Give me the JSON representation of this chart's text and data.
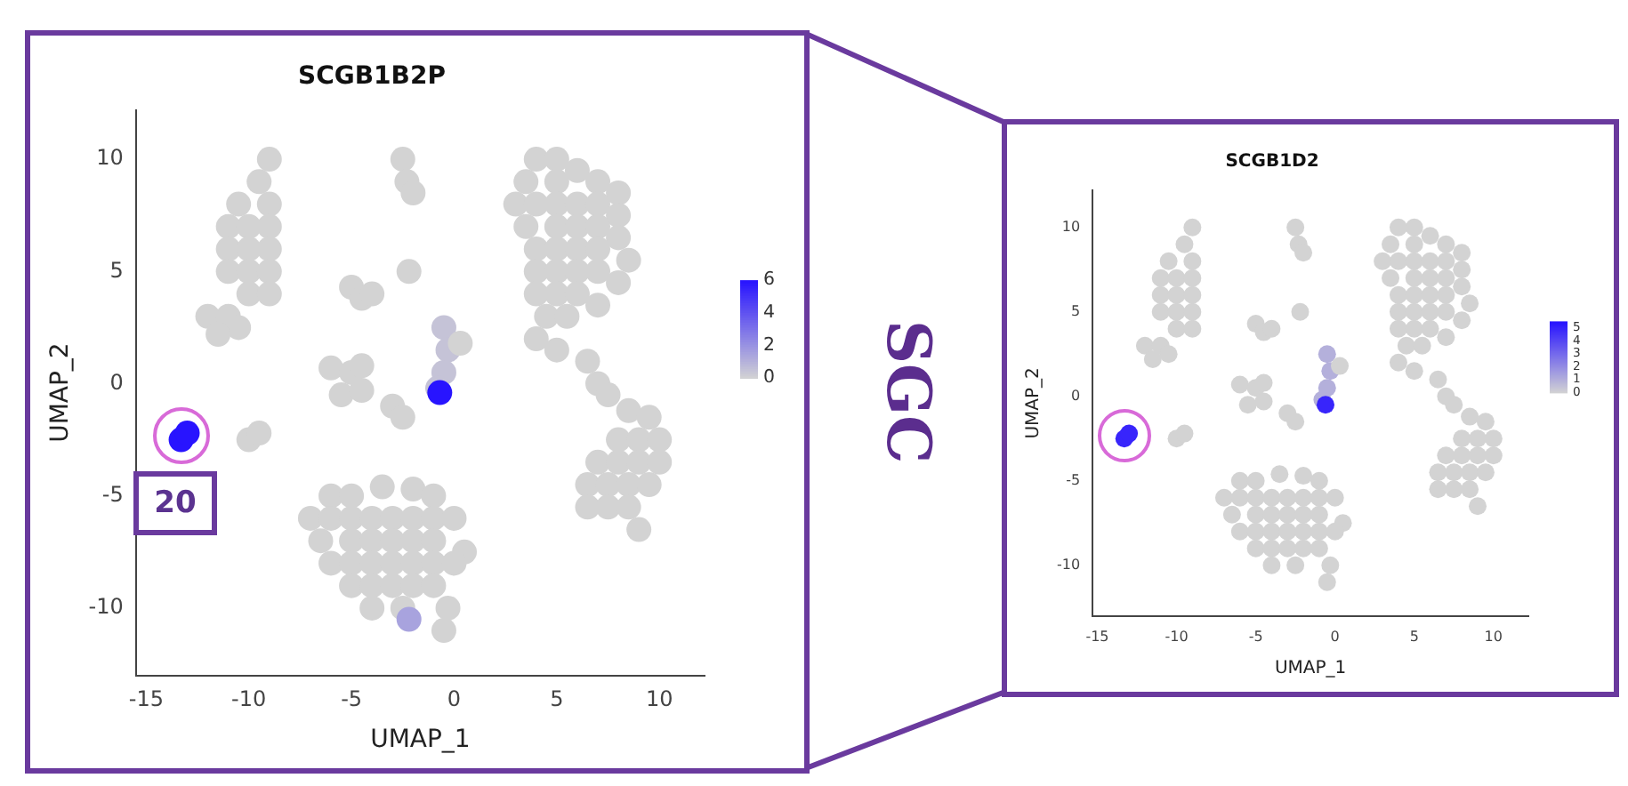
{
  "chart_data": [
    {
      "type": "scatter",
      "title": "SCGB1B2P",
      "xlabel": "UMAP_1",
      "ylabel": "UMAP_2",
      "marker": "circle",
      "grid": false,
      "legend": false,
      "xlim": [
        -15.5,
        12.2
      ],
      "ylim": [
        -13,
        12.2
      ],
      "xticks": [
        -15,
        -10,
        -5,
        0,
        5,
        10
      ],
      "yticks": [
        -10,
        -5,
        0,
        5,
        10
      ],
      "clim": [
        0,
        6
      ],
      "cticks": [
        0,
        2,
        4,
        6
      ],
      "annotations": [
        "20"
      ],
      "x": [
        -9,
        -9.5,
        -10.5,
        -9,
        -11,
        -10,
        -9,
        -11,
        -10,
        -9,
        -11,
        -10,
        -9,
        -10,
        -9,
        -12,
        -11,
        -10.5,
        -11.5,
        -2.5,
        -2.3,
        -2,
        -2.2,
        -5,
        -4.5,
        -4,
        4,
        5,
        6,
        3.5,
        5,
        7,
        8,
        3,
        4,
        5,
        6,
        7,
        8,
        3.5,
        5,
        6,
        7,
        8,
        4,
        5,
        6,
        7,
        8.5,
        4,
        5,
        6,
        7,
        8,
        4,
        5,
        6,
        7,
        4.5,
        5.5,
        4,
        5,
        -6,
        -5,
        -4.5,
        -5.5,
        -4.5,
        -0.5,
        -0.3,
        -0.5,
        -0.8,
        0.3,
        -3,
        -2.5,
        6.5,
        7,
        7.5,
        -10,
        -9.5,
        -6,
        -5,
        -3.5,
        -2,
        -1,
        -7,
        -6,
        -5,
        -4,
        -3,
        -2,
        -1,
        0,
        -6.5,
        -5,
        -4,
        -3,
        -2,
        -1,
        0.5,
        -6,
        -5,
        -4,
        -3,
        -2,
        -1,
        0,
        -5,
        -4,
        -3,
        -2,
        -1,
        -0.3,
        -4,
        -2.5,
        -0.5,
        8.5,
        9.5,
        8,
        9,
        10,
        7,
        8,
        9,
        10,
        6.5,
        7.5,
        8.5,
        9.5,
        6.5,
        7.5,
        8.5,
        9,
        -2.2,
        -0.7,
        -13.3,
        -13
      ],
      "values": [
        10,
        9,
        8,
        8,
        7,
        7,
        7,
        6,
        6,
        6,
        5,
        5,
        5,
        4,
        4,
        3,
        3,
        2.5,
        2.2,
        10,
        9,
        8.5,
        5,
        4.3,
        3.8,
        4,
        10,
        10,
        9.5,
        9,
        9,
        9,
        8.5,
        8,
        8,
        8,
        8,
        8,
        7.5,
        7,
        7,
        7,
        7,
        6.5,
        6,
        6,
        6,
        6,
        5.5,
        5,
        5,
        5,
        5,
        4.5,
        4,
        4,
        4,
        3.5,
        3,
        3,
        2,
        1.5,
        0.7,
        0.5,
        0.8,
        -0.5,
        -0.3,
        2.5,
        1.5,
        0.5,
        -0.2,
        1.8,
        -1,
        -1.5,
        1,
        0,
        -0.5,
        -2.5,
        -2.2,
        -5,
        -5,
        -4.6,
        -4.7,
        -5,
        -6,
        -6,
        -6,
        -6,
        -6,
        -6,
        -6,
        -6,
        -7,
        -7,
        -7,
        -7,
        -7,
        -7,
        -7.5,
        -8,
        -8,
        -8,
        -8,
        -8,
        -8,
        -8,
        -9,
        -9,
        -9,
        -9,
        -9,
        -10,
        -10,
        -10,
        -11,
        -1.2,
        -1.5,
        -2.5,
        -2.5,
        -2.5,
        -3.5,
        -3.5,
        -3.5,
        -3.5,
        -4.5,
        -4.5,
        -4.5,
        -4.5,
        -5.5,
        -5.5,
        -5.5,
        -6.5,
        -10.5,
        -0.4,
        -2.5,
        -2.2
      ],
      "cvalues": [
        0,
        0,
        0,
        0,
        0,
        0,
        0,
        0,
        0,
        0,
        0,
        0,
        0,
        0,
        0,
        0,
        0,
        0,
        0,
        0,
        0,
        0,
        0,
        0,
        0,
        0,
        0,
        0,
        0,
        0,
        0,
        0,
        0,
        0,
        0,
        0,
        0,
        0,
        0,
        0,
        0,
        0,
        0,
        0,
        0,
        0,
        0,
        0,
        0,
        0,
        0,
        0,
        0,
        0,
        0,
        0,
        0,
        0,
        0,
        0,
        0,
        0,
        0,
        0,
        0,
        0,
        0,
        0.5,
        0.5,
        0.5,
        0.5,
        0,
        0,
        0,
        0,
        0,
        0,
        0,
        0,
        0,
        0,
        0,
        0,
        0,
        0,
        0,
        0,
        0,
        0,
        0,
        0,
        0,
        0,
        0,
        0,
        0,
        0,
        0,
        0,
        0,
        0,
        0,
        0,
        0,
        0,
        0,
        0,
        0,
        0,
        0,
        0,
        0,
        0,
        0,
        0,
        0,
        0,
        0,
        0,
        0,
        0,
        0,
        0,
        0,
        0,
        0,
        0,
        0,
        0,
        0,
        0,
        0,
        1.5,
        6,
        6,
        6
      ]
    },
    {
      "type": "scatter",
      "title": "SCGB1D2",
      "xlabel": "UMAP_1",
      "ylabel": "UMAP_2",
      "marker": "circle",
      "grid": false,
      "legend": false,
      "xlim": [
        -15.3,
        12.2
      ],
      "ylim": [
        -13,
        12.2
      ],
      "xticks": [
        -15,
        -10,
        -5,
        0,
        5,
        10
      ],
      "yticks": [
        -10,
        -5,
        0,
        5,
        10
      ],
      "clim": [
        0,
        5.5
      ],
      "cticks": [
        0,
        1,
        2,
        3,
        4,
        5
      ],
      "annotations": [
        "SGC"
      ],
      "x": [
        -9,
        -9.5,
        -10.5,
        -9,
        -11,
        -10,
        -9,
        -11,
        -10,
        -9,
        -11,
        -10,
        -9,
        -10,
        -9,
        -12,
        -11,
        -10.5,
        -11.5,
        -2.5,
        -2.3,
        -2,
        -2.2,
        -5,
        -4.5,
        -4,
        4,
        5,
        6,
        3.5,
        5,
        7,
        8,
        3,
        4,
        5,
        6,
        7,
        8,
        3.5,
        5,
        6,
        7,
        8,
        4,
        5,
        6,
        7,
        8.5,
        4,
        5,
        6,
        7,
        8,
        4,
        5,
        6,
        7,
        4.5,
        5.5,
        4,
        5,
        -6,
        -5,
        -4.5,
        -5.5,
        -4.5,
        -0.5,
        -0.3,
        -0.5,
        -0.8,
        0.3,
        -3,
        -2.5,
        6.5,
        7,
        7.5,
        -10,
        -9.5,
        -6,
        -5,
        -3.5,
        -2,
        -1,
        -7,
        -6,
        -5,
        -4,
        -3,
        -2,
        -1,
        0,
        -6.5,
        -5,
        -4,
        -3,
        -2,
        -1,
        0.5,
        -6,
        -5,
        -4,
        -3,
        -2,
        -1,
        0,
        -5,
        -4,
        -3,
        -2,
        -1,
        -0.3,
        -4,
        -2.5,
        -0.5,
        8.5,
        9.5,
        8,
        9,
        10,
        7,
        8,
        9,
        10,
        6.5,
        7.5,
        8.5,
        9.5,
        6.5,
        7.5,
        8.5,
        9,
        -0.6,
        -13.3,
        -13
      ],
      "values": [
        10,
        9,
        8,
        8,
        7,
        7,
        7,
        6,
        6,
        6,
        5,
        5,
        5,
        4,
        4,
        3,
        3,
        2.5,
        2.2,
        10,
        9,
        8.5,
        5,
        4.3,
        3.8,
        4,
        10,
        10,
        9.5,
        9,
        9,
        9,
        8.5,
        8,
        8,
        8,
        8,
        8,
        7.5,
        7,
        7,
        7,
        7,
        6.5,
        6,
        6,
        6,
        6,
        5.5,
        5,
        5,
        5,
        5,
        4.5,
        4,
        4,
        4,
        3.5,
        3,
        3,
        2,
        1.5,
        0.7,
        0.5,
        0.8,
        -0.5,
        -0.3,
        2.5,
        1.5,
        0.5,
        -0.2,
        1.8,
        -1,
        -1.5,
        1,
        0,
        -0.5,
        -2.5,
        -2.2,
        -5,
        -5,
        -4.6,
        -4.7,
        -5,
        -6,
        -6,
        -6,
        -6,
        -6,
        -6,
        -6,
        -6,
        -7,
        -7,
        -7,
        -7,
        -7,
        -7,
        -7.5,
        -8,
        -8,
        -8,
        -8,
        -8,
        -8,
        -8,
        -9,
        -9,
        -9,
        -9,
        -9,
        -10,
        -10,
        -10,
        -11,
        -1.2,
        -1.5,
        -2.5,
        -2.5,
        -2.5,
        -3.5,
        -3.5,
        -3.5,
        -3.5,
        -4.5,
        -4.5,
        -4.5,
        -4.5,
        -5.5,
        -5.5,
        -5.5,
        -6.5,
        -0.5,
        -2.5,
        -2.2
      ],
      "cvalues": [
        0,
        0,
        0,
        0,
        0,
        0,
        0,
        0,
        0,
        0,
        0,
        0,
        0,
        0,
        0,
        0,
        0,
        0,
        0,
        0,
        0,
        0,
        0,
        0,
        0,
        0,
        0,
        0,
        0,
        0,
        0,
        0,
        0,
        0,
        0,
        0,
        0,
        0,
        0,
        0,
        0,
        0,
        0,
        0,
        0,
        0,
        0,
        0,
        0,
        0,
        0,
        0,
        0,
        0,
        0,
        0,
        0,
        0,
        0,
        0,
        0,
        0,
        0,
        0,
        0,
        0,
        0,
        1,
        1,
        1,
        1,
        0,
        0,
        0,
        0,
        0,
        0,
        0,
        0,
        0,
        0,
        0,
        0,
        0,
        0,
        0,
        0,
        0,
        0,
        0,
        0,
        0,
        0,
        0,
        0,
        0,
        0,
        0,
        0,
        0,
        0,
        0,
        0,
        0,
        0,
        0,
        0,
        0,
        0,
        0,
        0,
        0,
        0,
        0,
        0,
        0,
        0,
        0,
        0,
        0,
        0,
        0,
        0,
        0,
        0,
        0,
        0,
        0,
        0,
        0,
        0,
        0,
        5,
        5,
        5
      ]
    }
  ]
}
